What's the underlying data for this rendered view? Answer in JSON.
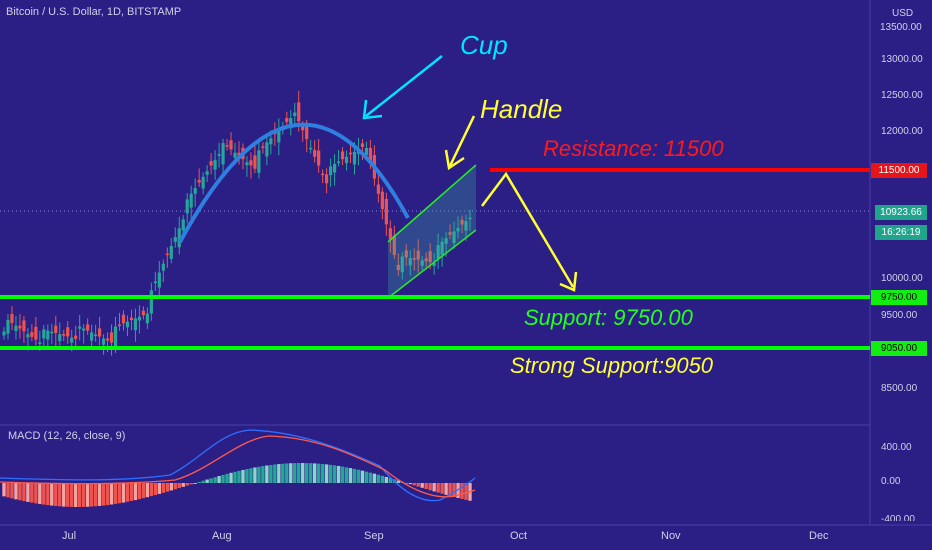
{
  "header": {
    "title": "Bitcoin / U.S. Dollar, 1D, BITSTAMP"
  },
  "price_axis": {
    "currency": "USD",
    "ticks": [
      "13000.00",
      "12500.00",
      "12000.00",
      "10000.00",
      "9500.00",
      "8500.00"
    ],
    "top_partial": "13500.00"
  },
  "markers": {
    "resistance": "11500.00",
    "current_price": "10923.66",
    "countdown": "16:26:19",
    "support": "9750.00",
    "strong_support": "9050.00"
  },
  "annotations": {
    "cup": "Cup",
    "handle": "Handle",
    "resistance": "Resistance: 11500",
    "support": "Support: 9750.00",
    "strong_support": "Strong Support:9050"
  },
  "macd": {
    "label": "MACD (12, 26, close, 9)",
    "ticks": [
      "400.00",
      "0.00"
    ],
    "bottom_partial": "-400.00"
  },
  "time_axis": {
    "labels": [
      "Jul",
      "Aug",
      "Sep",
      "Oct",
      "Nov",
      "Dec"
    ]
  },
  "colors": {
    "background": "#2b1f86",
    "up_candle": "#26a69a",
    "down_candle": "#ef5350",
    "support_line": "#00ff00",
    "resistance_line": "#ff0000",
    "cup_arc": "#2f7fe0",
    "cup_text": "#00e5ff",
    "yellow": "#ffff33"
  },
  "chart_data": {
    "type": "candlestick",
    "title": "Bitcoin / U.S. Dollar, 1D, BITSTAMP",
    "y_unit": "USD",
    "ylim": [
      8300,
      13700
    ],
    "candles_approx": [
      {
        "date": "Jun 20",
        "close": 9350
      },
      {
        "date": "Jul 1",
        "close": 9200
      },
      {
        "date": "Jul 10",
        "close": 9250
      },
      {
        "date": "Jul 20",
        "close": 9200
      },
      {
        "date": "Jul 25",
        "close": 9600
      },
      {
        "date": "Jul 27",
        "close": 10900
      },
      {
        "date": "Aug 1",
        "close": 11800
      },
      {
        "date": "Aug 10",
        "close": 11600
      },
      {
        "date": "Aug 17",
        "close": 12300
      },
      {
        "date": "Aug 25",
        "close": 11400
      },
      {
        "date": "Sep 1",
        "close": 11900
      },
      {
        "date": "Sep 3",
        "close": 10200
      },
      {
        "date": "Sep 10",
        "close": 10300
      },
      {
        "date": "Sep 20",
        "close": 10923.66
      }
    ],
    "levels": {
      "resistance": 11500,
      "support": 9750,
      "strong_support": 9050
    }
  }
}
